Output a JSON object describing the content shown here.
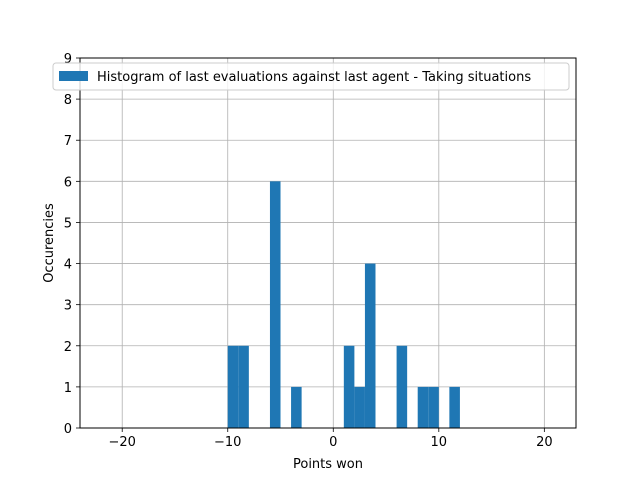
{
  "chart_data": {
    "type": "bar",
    "title": "",
    "xlabel": "Points won",
    "ylabel": "Occurencies",
    "xlim": [
      -24,
      23
    ],
    "ylim": [
      0,
      9
    ],
    "xticks": [
      -20,
      -10,
      0,
      10,
      20
    ],
    "xtick_labels": [
      "−20",
      "−10",
      "0",
      "10",
      "20"
    ],
    "yticks": [
      0,
      1,
      2,
      3,
      4,
      5,
      6,
      7,
      8,
      9
    ],
    "grid": true,
    "legend_position": "top-right",
    "series": [
      {
        "name": "Histogram of last evaluations against last agent - Taking situations",
        "color": "#1f77b4",
        "bins": [
          {
            "x0": -10.0,
            "x1": -9.0,
            "value": 2
          },
          {
            "x0": -9.0,
            "x1": -8.0,
            "value": 2
          },
          {
            "x0": -6.0,
            "x1": -5.0,
            "value": 6
          },
          {
            "x0": -4.0,
            "x1": -3.0,
            "value": 1
          },
          {
            "x0": 1.0,
            "x1": 2.0,
            "value": 2
          },
          {
            "x0": 2.0,
            "x1": 3.0,
            "value": 1
          },
          {
            "x0": 3.0,
            "x1": 4.0,
            "value": 4
          },
          {
            "x0": 6.0,
            "x1": 7.0,
            "value": 2
          },
          {
            "x0": 8.0,
            "x1": 9.0,
            "value": 1
          },
          {
            "x0": 9.0,
            "x1": 10.0,
            "value": 1
          },
          {
            "x0": 11.0,
            "x1": 12.0,
            "value": 1
          }
        ]
      }
    ]
  }
}
